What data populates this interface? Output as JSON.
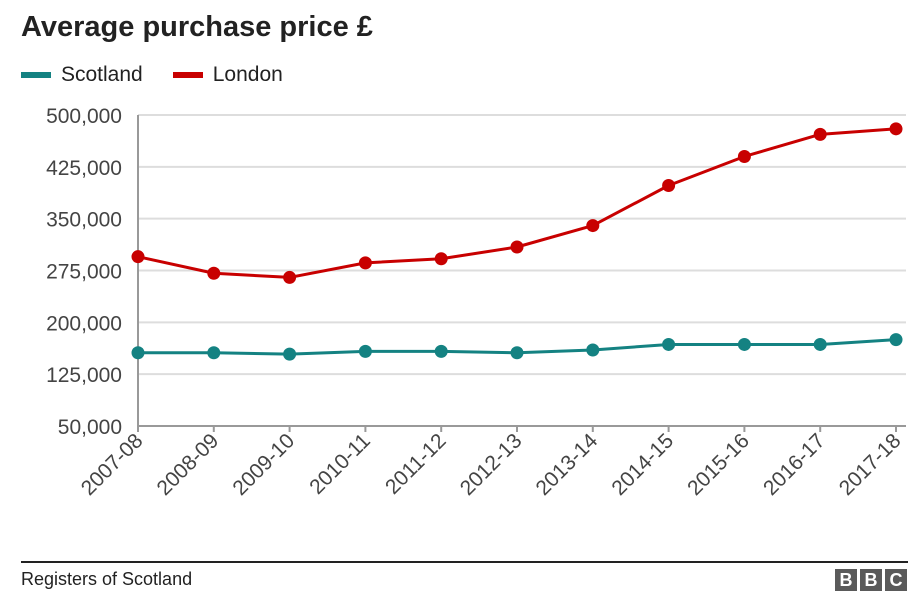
{
  "chart_data": {
    "type": "line",
    "title": "Average purchase price £",
    "categories": [
      "2007-08",
      "2008-09",
      "2009-10",
      "2010-11",
      "2011-12",
      "2012-13",
      "2013-14",
      "2014-15",
      "2015-16",
      "2016-17",
      "2017-18"
    ],
    "series": [
      {
        "name": "Scotland",
        "color": "#148282",
        "values": [
          156000,
          156000,
          154000,
          158000,
          158000,
          156000,
          160000,
          168000,
          168000,
          168000,
          175000
        ]
      },
      {
        "name": "London",
        "color": "#c80000",
        "values": [
          295000,
          271000,
          265000,
          286000,
          292000,
          309000,
          340000,
          398000,
          440000,
          472000,
          480000
        ]
      }
    ],
    "yticks": [
      "500,000",
      "425,000",
      "350,000",
      "275,000",
      "200,000",
      "125,000",
      "50,000"
    ],
    "ytick_values": [
      500000,
      425000,
      350000,
      275000,
      200000,
      125000,
      50000
    ],
    "ylim": [
      50000,
      500000
    ],
    "grid": true,
    "legend_position": "top-left"
  },
  "footer": {
    "source": "Registers of Scotland",
    "logo_letters": [
      "B",
      "B",
      "C"
    ]
  }
}
